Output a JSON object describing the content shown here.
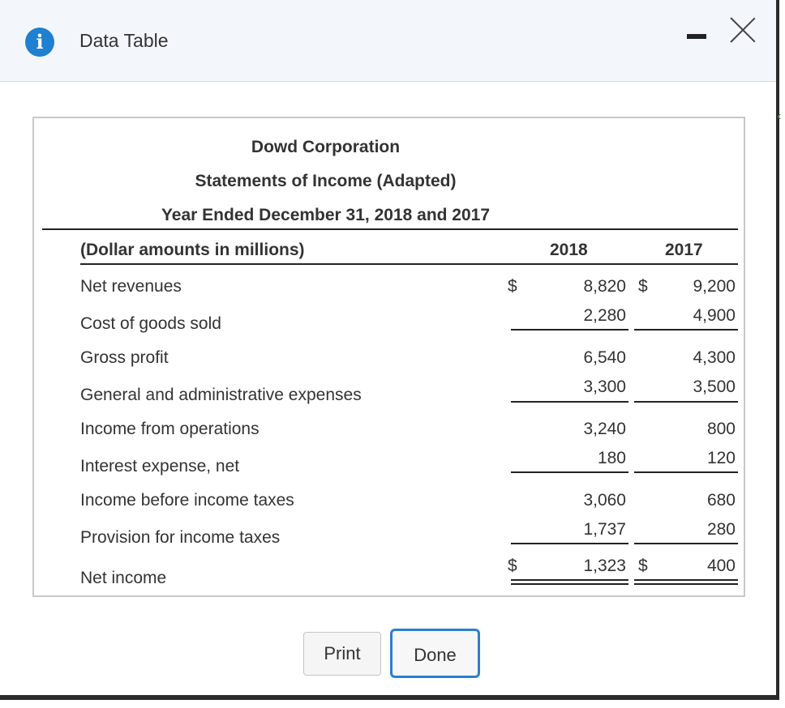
{
  "window": {
    "title": "Data Table",
    "info_icon": "i"
  },
  "statement": {
    "company": "Dowd Corporation",
    "name": "Statements of Income (Adapted)",
    "period": "Year Ended December 31, 2018 and 2017",
    "units_label": "(Dollar amounts in millions)",
    "col_2018": "2018",
    "col_2017": "2017",
    "currency": "$",
    "rows": [
      {
        "label": "Net revenues",
        "v2018": "8,820",
        "v2017": "9,200"
      },
      {
        "label": "Cost of goods sold",
        "v2018": "2,280",
        "v2017": "4,900"
      },
      {
        "label": "Gross profit",
        "v2018": "6,540",
        "v2017": "4,300"
      },
      {
        "label": "General and administrative expenses",
        "v2018": "3,300",
        "v2017": "3,500"
      },
      {
        "label": "Income from operations",
        "v2018": "3,240",
        "v2017": "800"
      },
      {
        "label": "Interest expense, net",
        "v2018": "180",
        "v2017": "120"
      },
      {
        "label": "Income before income taxes",
        "v2018": "3,060",
        "v2017": "680"
      },
      {
        "label": "Provision for income taxes",
        "v2018": "1,737",
        "v2017": "280"
      },
      {
        "label": "Net income",
        "v2018": "1,323",
        "v2017": "400"
      }
    ]
  },
  "buttons": {
    "print": "Print",
    "done": "Done"
  },
  "colors": {
    "accent": "#1f7fd1",
    "titlebar_bg": "#f3f7fc"
  }
}
